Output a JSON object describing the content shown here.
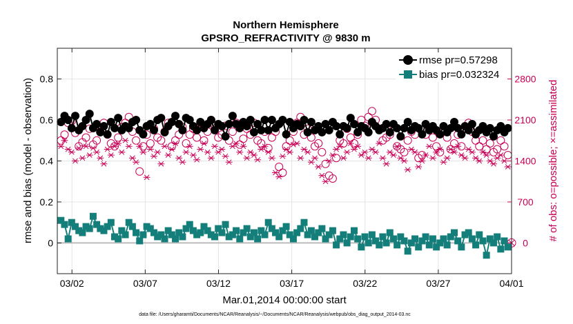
{
  "chart_data": {
    "type": "line",
    "title": "Northern Hemisphere",
    "subtitle": "GPSRO_REFRACTIVITY @ 9830 m",
    "xlabel": "Mar.01,2014 00:00:00 start",
    "ylabel_left": "rmse and bias (model - observation)",
    "ylabel_right": "# of obs: o=possible; ×=assimilated",
    "footnote": "data file: /Users/gharamti/Documents/NCAR/Reanalysis/~/Documents/NCAR/Reanalysis/webpub/obs_diag_output_2014-03.nc",
    "x_ticks": [
      {
        "day": 2,
        "label": "03/02"
      },
      {
        "day": 7,
        "label": "03/07"
      },
      {
        "day": 12,
        "label": "03/12"
      },
      {
        "day": 17,
        "label": "03/17"
      },
      {
        "day": 22,
        "label": "03/22"
      },
      {
        "day": 27,
        "label": "03/27"
      },
      {
        "day": 32,
        "label": "04/01"
      }
    ],
    "xlim": [
      1.0,
      32.0
    ],
    "ylim_left": [
      -0.15,
      0.95
    ],
    "yticks_left": [
      {
        "value": 0,
        "label": "0"
      },
      {
        "value": 0.2,
        "label": "0.2"
      },
      {
        "value": 0.4,
        "label": "0.4"
      },
      {
        "value": 0.6,
        "label": "0.6"
      },
      {
        "value": 0.8,
        "label": "0.8"
      }
    ],
    "ylim_right": [
      -525,
      3325
    ],
    "yticks_right": [
      {
        "value": 0,
        "label": "0"
      },
      {
        "value": 700,
        "label": "700"
      },
      {
        "value": 1400,
        "label": "1400"
      },
      {
        "value": 2100,
        "label": "2100"
      },
      {
        "value": 2800,
        "label": "2800"
      }
    ],
    "grid": true,
    "legend_position": "top-right",
    "rmse_color": "#000000",
    "bias_color": "#147f7a",
    "count_color": "#c80055",
    "zero_line_color": "#bbbbbb",
    "series": [
      {
        "name": "rmse pr=0.57298",
        "axis": "left",
        "marker": "circle",
        "values": [
          0.59,
          0.62,
          0.6,
          0.56,
          0.62,
          0.55,
          0.57,
          0.6,
          0.63,
          0.56,
          0.58,
          0.54,
          0.57,
          0.53,
          0.59,
          0.56,
          0.61,
          0.55,
          0.57,
          0.56,
          0.59,
          0.6,
          0.55,
          0.53,
          0.57,
          0.58,
          0.55,
          0.6,
          0.61,
          0.54,
          0.57,
          0.59,
          0.62,
          0.58,
          0.55,
          0.61,
          0.6,
          0.57,
          0.55,
          0.59,
          0.56,
          0.58,
          0.6,
          0.55,
          0.58,
          0.57,
          0.52,
          0.58,
          0.62,
          0.58,
          0.56,
          0.59,
          0.57,
          0.6,
          0.54,
          0.58,
          0.55,
          0.6,
          0.55,
          0.6,
          0.56,
          0.58,
          0.6,
          0.53,
          0.59,
          0.56,
          0.58,
          0.57,
          0.6,
          0.54,
          0.59,
          0.55,
          0.57,
          0.54,
          0.58,
          0.55,
          0.59,
          0.57,
          0.53,
          0.57,
          0.56,
          0.61,
          0.58,
          0.54,
          0.57,
          0.56,
          0.54,
          0.59,
          0.57,
          0.55,
          0.56,
          0.58,
          0.54,
          0.58,
          0.56,
          0.52,
          0.56,
          0.59,
          0.55,
          0.57,
          0.56,
          0.53,
          0.58,
          0.55,
          0.57,
          0.55,
          0.53,
          0.57,
          0.54,
          0.56,
          0.59,
          0.56,
          0.53,
          0.57,
          0.55,
          0.58,
          0.53,
          0.55,
          0.57,
          0.54,
          0.56,
          0.52,
          0.55,
          0.57,
          0.54,
          0.56
        ]
      },
      {
        "name": "bias pr=0.032324",
        "axis": "left",
        "marker": "square",
        "values": [
          0.11,
          0.09,
          0.02,
          0.1,
          0.08,
          0.06,
          0.05,
          0.08,
          0.07,
          0.13,
          0.09,
          0.07,
          0.06,
          0.08,
          0.1,
          0.03,
          0.02,
          0.06,
          0.04,
          0.1,
          0.08,
          0.05,
          0.01,
          0.04,
          0.08,
          0.07,
          0.05,
          0.03,
          0.04,
          0.02,
          0.06,
          0.04,
          0.02,
          0.05,
          0.03,
          0.07,
          0.09,
          0.06,
          0.04,
          0.05,
          0.08,
          0.06,
          0.04,
          0.03,
          0.07,
          0.05,
          0.09,
          0.03,
          0.04,
          0.06,
          0.02,
          0.05,
          0.07,
          0.03,
          0.05,
          0.02,
          0.06,
          0.04,
          0.1,
          0.07,
          0.05,
          0.03,
          0.06,
          0.08,
          0.04,
          0.02,
          0.05,
          0.07,
          0.1,
          0.04,
          0.06,
          0.03,
          0.05,
          0.07,
          0.02,
          0.04,
          0.06,
          -0.01,
          0.02,
          0.04,
          0.0,
          0.03,
          0.06,
          0.02,
          -0.02,
          0.03,
          0.0,
          0.04,
          0.01,
          -0.01,
          0.03,
          0.0,
          0.05,
          0.02,
          -0.01,
          0.03,
          0.01,
          -0.04,
          0.0,
          0.02,
          -0.02,
          0.01,
          0.03,
          -0.01,
          0.02,
          -0.02,
          0.0,
          0.02,
          -0.01,
          0.03,
          0.05,
          0.01,
          -0.02,
          0.04,
          0.05,
          0.02,
          -0.01,
          0.04,
          0.01,
          -0.06,
          0.02,
          0.0,
          0.03,
          -0.03,
          0.01,
          -0.02
        ]
      },
      {
        "name": "possible",
        "axis": "right",
        "marker": "open-circle",
        "values": [
          1750,
          1850,
          2050,
          2080,
          1880,
          1650,
          1720,
          1800,
          1950,
          1680,
          1750,
          1900,
          2050,
          1850,
          1700,
          1650,
          1800,
          1980,
          2050,
          2150,
          1900,
          1750,
          1220,
          1650,
          1850,
          1700,
          1950,
          1800,
          1750,
          1900,
          2050,
          1650,
          1750,
          1850,
          1980,
          1700,
          1850,
          1950,
          1800,
          2050,
          1750,
          1900,
          2100,
          1950,
          1800,
          1850,
          2000,
          1750,
          1900,
          2050,
          1680,
          1780,
          1950,
          1850,
          2050,
          1750,
          1700,
          1900,
          1620,
          1800,
          1900,
          1300,
          1200,
          1650,
          1750,
          1900,
          2050,
          2150,
          1850,
          1950,
          1800,
          1650,
          1700,
          1550,
          1350,
          1150,
          1100,
          1450,
          1750,
          1700,
          1950,
          1800,
          1700,
          1850,
          2100,
          2000,
          2150,
          2250,
          2100,
          1950,
          1750,
          1800,
          1850,
          2000,
          1650,
          1600,
          1550,
          1750,
          1900,
          1850,
          1450,
          1500,
          1850,
          1950,
          1800,
          1650,
          1550,
          1900,
          1800,
          1600,
          1700,
          1850,
          1650,
          1950,
          2050,
          1900,
          1750,
          1650,
          1750,
          1600,
          1700,
          1550,
          1600,
          1750,
          1650,
          1500
        ]
      },
      {
        "name": "assimilated",
        "axis": "right",
        "marker": "star",
        "values": [
          1650,
          1750,
          1600,
          1550,
          1400,
          1620,
          1450,
          1650,
          1500,
          1620,
          1550,
          1450,
          1350,
          1600,
          1500,
          1650,
          1700,
          1550,
          1750,
          1650,
          1450,
          1380,
          1650,
          1550,
          1120,
          1600,
          1480,
          1550,
          1350,
          1650,
          1500,
          1600,
          1700,
          1450,
          1380,
          1550,
          1650,
          1500,
          1420,
          1600,
          1700,
          1550,
          1450,
          1650,
          1550,
          1600,
          1480,
          1380,
          1650,
          1700,
          1550,
          1650,
          1450,
          1550,
          1500,
          1420,
          1600,
          1650,
          1550,
          1450,
          1200,
          1130,
          1480,
          1600,
          1550,
          1680,
          1700,
          1450,
          1600,
          1550,
          1380,
          1450,
          1300,
          1150,
          1050,
          1400,
          1500,
          1600,
          1650,
          1450,
          1550,
          1700,
          1600,
          1650,
          1500,
          1550,
          1450,
          1600,
          1550,
          1700,
          1450,
          1350,
          1550,
          1500,
          1650,
          1450,
          1400,
          1250,
          1600,
          1550,
          1300,
          1400,
          1500,
          1650,
          1450,
          1550,
          1600,
          1380,
          1450,
          1600,
          1550,
          1650,
          1500,
          1450,
          1600,
          1550,
          1450,
          1400,
          1550,
          1500,
          1400,
          1350,
          1450,
          1500,
          1400,
          1300
        ]
      }
    ]
  }
}
